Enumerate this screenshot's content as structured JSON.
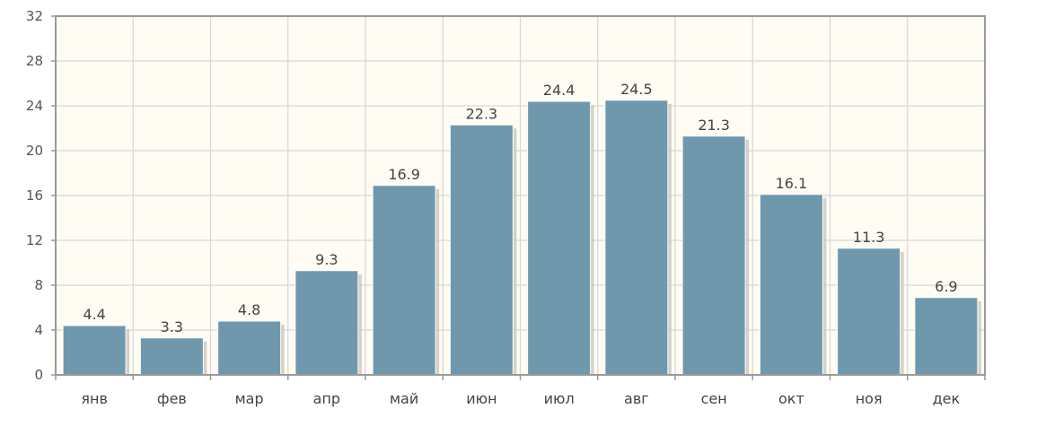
{
  "chart_data": {
    "type": "bar",
    "title": "",
    "xlabel": "",
    "ylabel": "",
    "categories": [
      "янв",
      "фев",
      "мар",
      "апр",
      "май",
      "июн",
      "июл",
      "авг",
      "сен",
      "окт",
      "ноя",
      "дек"
    ],
    "values": [
      4.4,
      3.3,
      4.8,
      9.3,
      16.9,
      22.3,
      24.4,
      24.5,
      21.3,
      16.1,
      11.3,
      6.9
    ],
    "value_labels": [
      "4.4",
      "3.3",
      "4.8",
      "9.3",
      "16.9",
      "22.3",
      "24.4",
      "24.5",
      "21.3",
      "16.1",
      "11.3",
      "6.9"
    ],
    "ylim": [
      0,
      32
    ],
    "yticks": [
      0,
      4,
      8,
      12,
      16,
      20,
      24,
      28,
      32
    ],
    "ytick_labels": [
      "0",
      "4",
      "8",
      "12",
      "16",
      "20",
      "24",
      "28",
      "32"
    ],
    "grid": true,
    "legend": "none",
    "colors": {
      "bar": "#6f98ad",
      "bar_shadow": "#c9c6bd",
      "plot_background": "#fefcf3",
      "grid": "#d6d6d6",
      "axis": "#999999"
    }
  }
}
